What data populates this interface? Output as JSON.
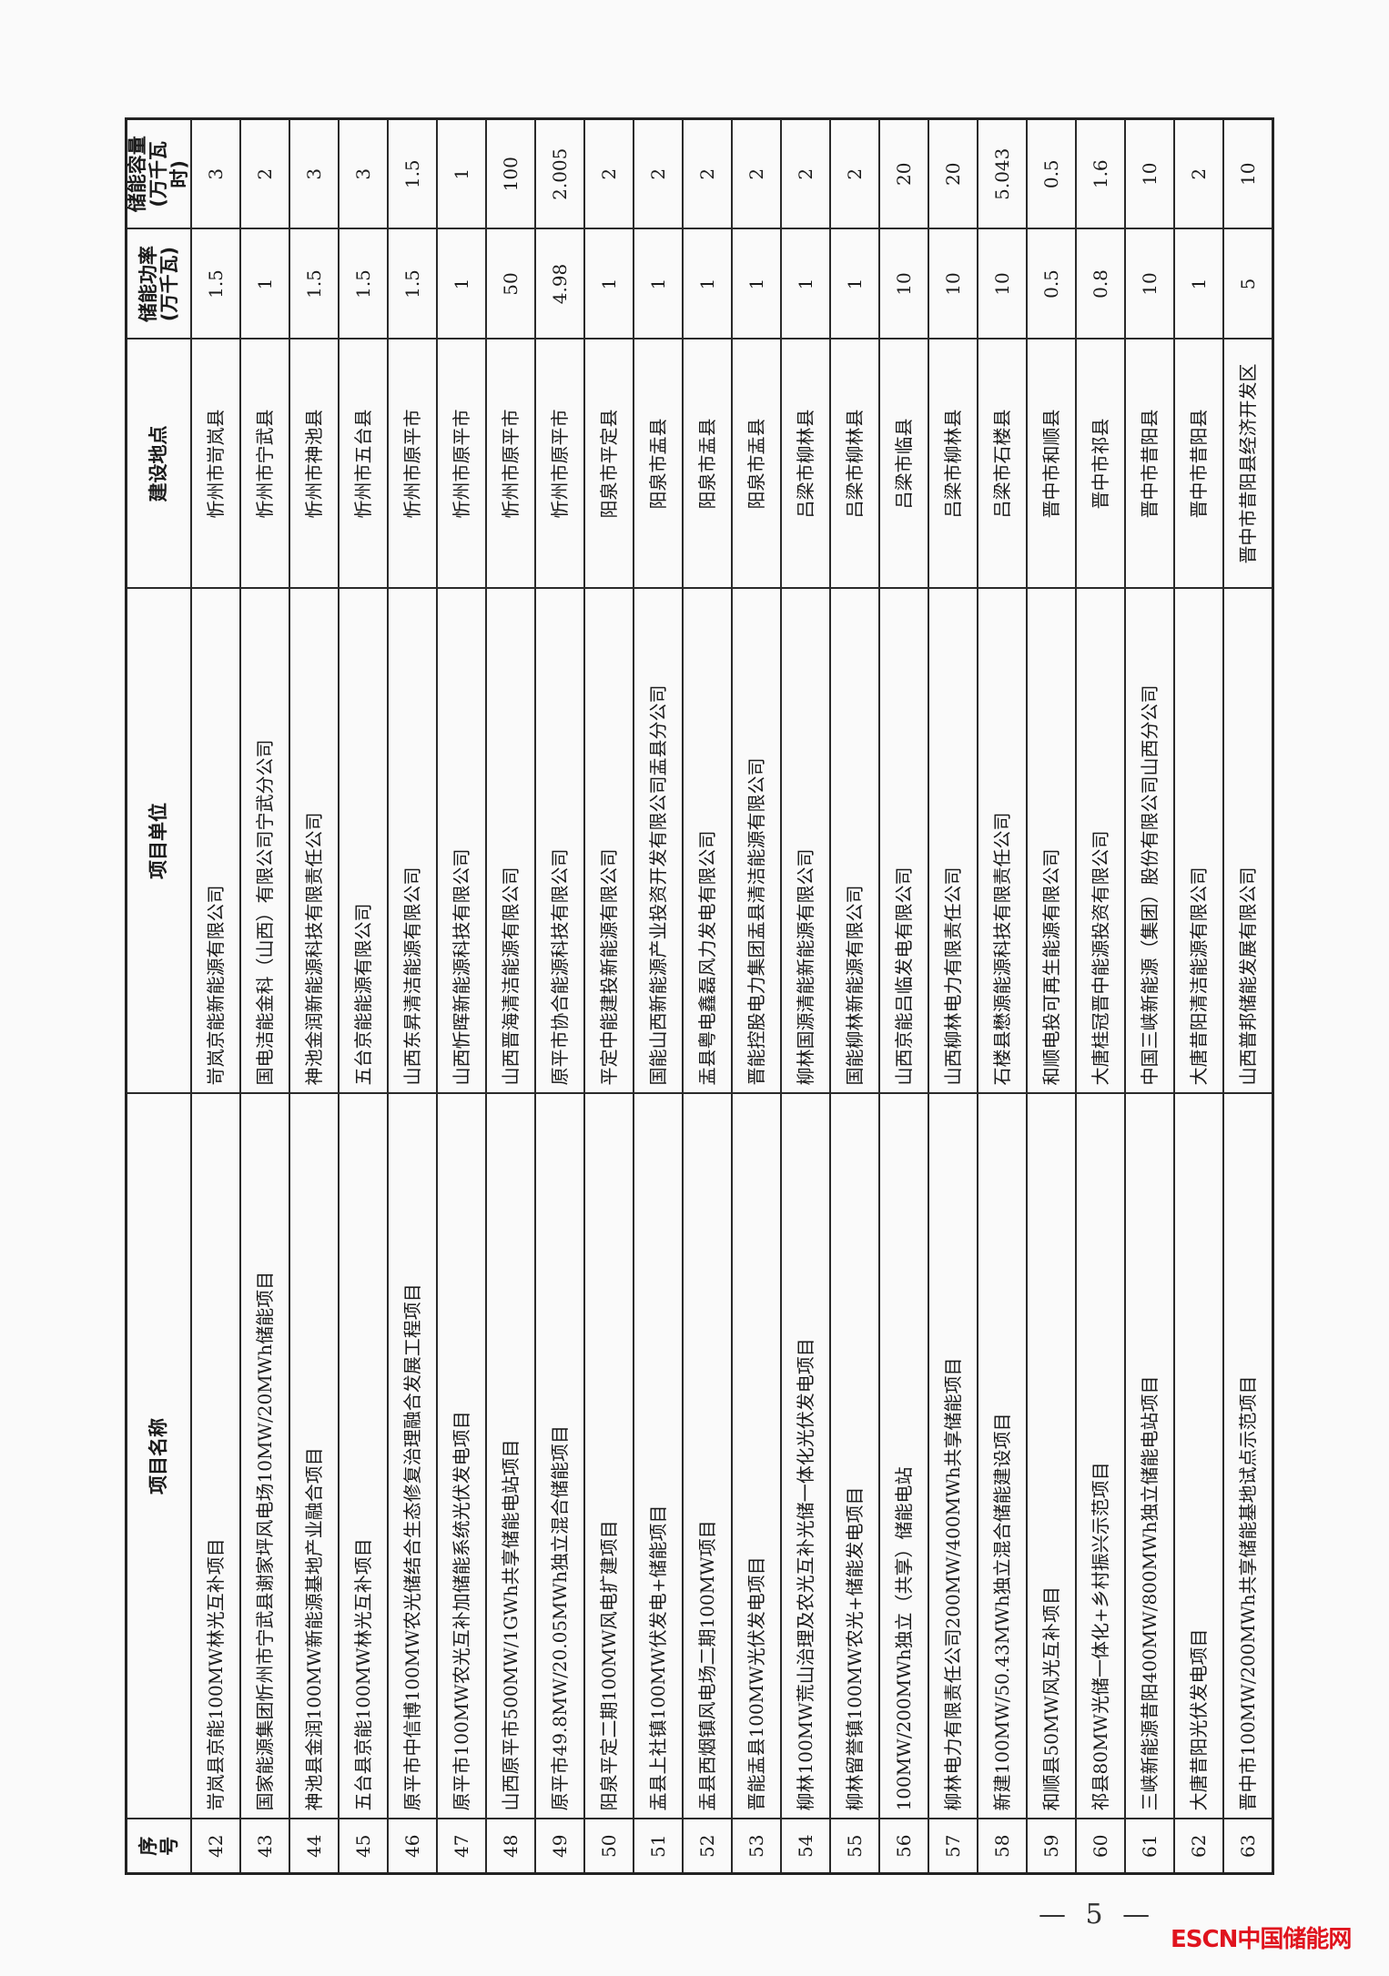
{
  "table": {
    "headers": {
      "seq": "序号",
      "name": "项目名称",
      "unit": "项目单位",
      "location": "建设地点",
      "power_line1": "储能功率",
      "power_line2": "(万千瓦)",
      "capacity_line1": "储能容量",
      "capacity_line2": "(万千瓦时)"
    },
    "rows": [
      {
        "seq": "42",
        "name": "岢岚县京能100MW林光互补项目",
        "unit": "岢岚京能新能源有限公司",
        "location": "忻州市岢岚县",
        "power": "1.5",
        "capacity": "3"
      },
      {
        "seq": "43",
        "name": "国家能源集团忻州市宁武县谢家坪风电场10MW/20MWh储能项目",
        "unit": "国电洁能金科（山西）有限公司宁武分公司",
        "location": "忻州市宁武县",
        "power": "1",
        "capacity": "2"
      },
      {
        "seq": "44",
        "name": "神池县金润100MW新能源基地产业融合项目",
        "unit": "神池金润新能源科技有限责任公司",
        "location": "忻州市神池县",
        "power": "1.5",
        "capacity": "3"
      },
      {
        "seq": "45",
        "name": "五台县京能100MW林光互补项目",
        "unit": "五台京能能源有限公司",
        "location": "忻州市五台县",
        "power": "1.5",
        "capacity": "3"
      },
      {
        "seq": "46",
        "name": "原平市中信博100MW农光储结合生态修复治理融合发展工程项目",
        "unit": "山西东昇清洁能源有限公司",
        "location": "忻州市原平市",
        "power": "1.5",
        "capacity": "1.5"
      },
      {
        "seq": "47",
        "name": "原平市100MW农光互补加储能系统光伏发电项目",
        "unit": "山西忻晖新能源科技有限公司",
        "location": "忻州市原平市",
        "power": "1",
        "capacity": "1"
      },
      {
        "seq": "48",
        "name": "山西原平市500MW/1GWh共享储能电站项目",
        "unit": "山西晋海清洁能源有限公司",
        "location": "忻州市原平市",
        "power": "50",
        "capacity": "100"
      },
      {
        "seq": "49",
        "name": "原平市49.8MW/20.05MWh独立混合储能项目",
        "unit": "原平市协合能源科技有限公司",
        "location": "忻州市原平市",
        "power": "4.98",
        "capacity": "2.005"
      },
      {
        "seq": "50",
        "name": "阳泉平定二期100MW风电扩建项目",
        "unit": "平定中能建投新能源有限公司",
        "location": "阳泉市平定县",
        "power": "1",
        "capacity": "2"
      },
      {
        "seq": "51",
        "name": "盂县上社镇100MW伏发电+储能项目",
        "unit": "国能山西新能源产业投资开发有限公司盂县分公司",
        "location": "阳泉市盂县",
        "power": "1",
        "capacity": "2"
      },
      {
        "seq": "52",
        "name": "盂县西烟镇风电场二期100MW项目",
        "unit": "盂县粤电鑫磊风力发电有限公司",
        "location": "阳泉市盂县",
        "power": "1",
        "capacity": "2"
      },
      {
        "seq": "53",
        "name": "晋能盂县100MW光伏发电项目",
        "unit": "晋能控股电力集团盂县清洁能源有限公司",
        "location": "阳泉市盂县",
        "power": "1",
        "capacity": "2"
      },
      {
        "seq": "54",
        "name": "柳林100MW荒山治理及农光互补光储一体化光伏发电项目",
        "unit": "柳林国源清能新能源有限公司",
        "location": "吕梁市柳林县",
        "power": "1",
        "capacity": "2"
      },
      {
        "seq": "55",
        "name": "柳林留誉镇100MW农光+储能发电项目",
        "unit": "国能柳林新能源有限公司",
        "location": "吕梁市柳林县",
        "power": "1",
        "capacity": "2"
      },
      {
        "seq": "56",
        "name": "100MW/200MWh独立（共享）储能电站",
        "unit": "山西京能吕临发电有限公司",
        "location": "吕梁市临县",
        "power": "10",
        "capacity": "20"
      },
      {
        "seq": "57",
        "name": "柳林电力有限责任公司200MW/400MWh共享储能项目",
        "unit": "山西柳林电力有限责任公司",
        "location": "吕梁市柳林县",
        "power": "10",
        "capacity": "20"
      },
      {
        "seq": "58",
        "name": "新建100MW/50.43MWh独立混合储能建设项目",
        "unit": "石楼县懋源能源科技有限责任公司",
        "location": "吕梁市石楼县",
        "power": "10",
        "capacity": "5.043"
      },
      {
        "seq": "59",
        "name": "和顺县50MW风光互补项目",
        "unit": "和顺电投可再生能源有限公司",
        "location": "晋中市和顺县",
        "power": "0.5",
        "capacity": "0.5"
      },
      {
        "seq": "60",
        "name": "祁县80MW光储一体化+乡村振兴示范项目",
        "unit": "大唐桂冠晋中能源投资有限公司",
        "location": "晋中市祁县",
        "power": "0.8",
        "capacity": "1.6"
      },
      {
        "seq": "61",
        "name": "三峡新能源昔阳400MW/800MWh独立储能电站项目",
        "unit": "中国三峡新能源（集团）股份有限公司山西分公司",
        "location": "晋中市昔阳县",
        "power": "10",
        "capacity": "10"
      },
      {
        "seq": "62",
        "name": "大唐昔阳光伏发电项目",
        "unit": "大唐昔阳清洁能源有限公司",
        "location": "晋中市昔阳县",
        "power": "1",
        "capacity": "2"
      },
      {
        "seq": "63",
        "name": "晋中市100MW/200MWh共享储能基地试点示范项目",
        "unit": "山西普邦储能发展有限公司",
        "location": "晋中市昔阳县经济开发区",
        "power": "5",
        "capacity": "10"
      }
    ]
  },
  "footer": {
    "page_number": "— 5 —",
    "watermark_logo": "ESCN中国储能网",
    "logo_color": "#e0141e"
  }
}
